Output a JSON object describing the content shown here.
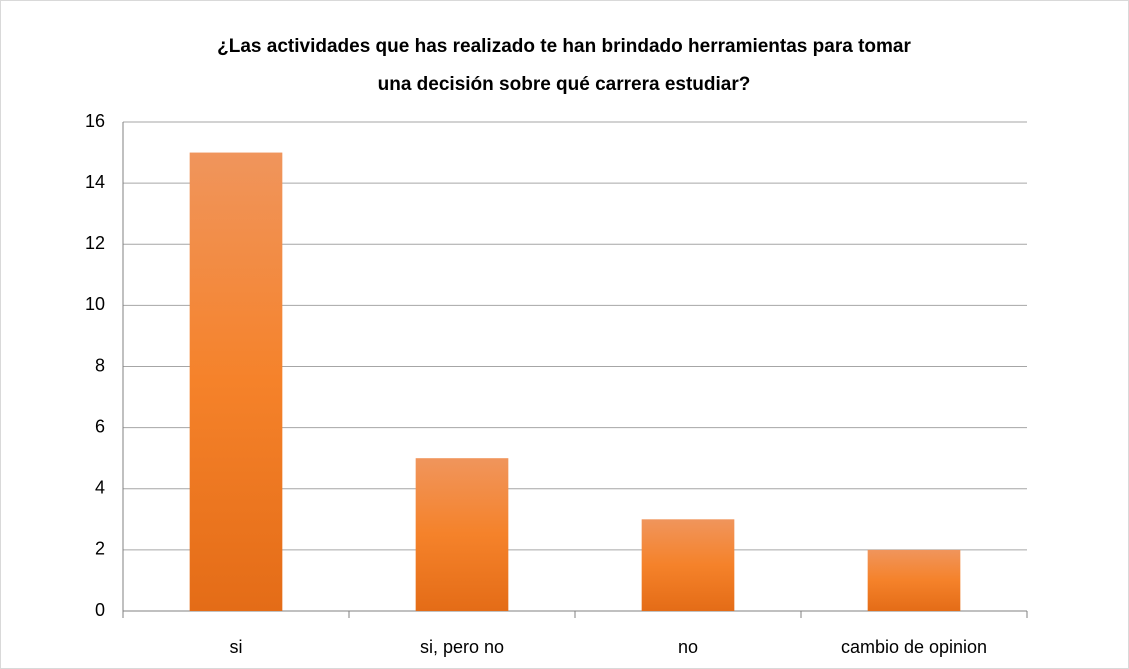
{
  "chart_data": {
    "type": "bar",
    "title": [
      "¿Las actividades que has realizado te han brindado herramientas para tomar",
      "una decisión sobre qué carrera estudiar?"
    ],
    "categories": [
      "si",
      "si, pero no",
      "no",
      "cambio de opinion"
    ],
    "values": [
      15,
      5,
      3,
      2
    ],
    "color": "#f5822a",
    "ylim": [
      0,
      16
    ],
    "yticks": [
      0,
      2,
      4,
      6,
      8,
      10,
      12,
      14,
      16
    ],
    "grid": true
  }
}
